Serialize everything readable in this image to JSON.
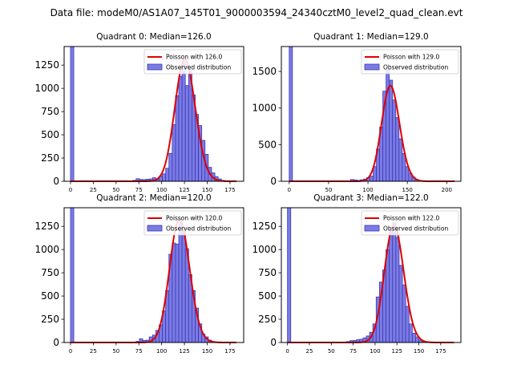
{
  "figure": {
    "suptitle": "Data file: modeM0/AS1A07_145T01_9000003594_24340cztM0_level2_quad_clean.evt"
  },
  "colors": {
    "bar_fill": "#7b7be6",
    "bar_edge": "#3a3ab0",
    "poisson_line": "#e00000",
    "axis": "#000000"
  },
  "chart_data": [
    {
      "type": "bar",
      "title": "Quadrant 0: Median=126.0",
      "median": 126.0,
      "xlim": [
        -7,
        190
      ],
      "ylim": [
        0,
        1450
      ],
      "xticks": [
        0,
        25,
        50,
        75,
        100,
        125,
        150,
        175
      ],
      "yticks": [
        0,
        250,
        500,
        750,
        1000,
        1250
      ],
      "bin_width": 3.6,
      "legend": [
        "Poisson with 126.0",
        "Observed distribution"
      ],
      "legend_position": "top-right",
      "bins": [
        [
          0,
          1450
        ],
        [
          68.4,
          10
        ],
        [
          72,
          28
        ],
        [
          75.6,
          20
        ],
        [
          79.2,
          18
        ],
        [
          82.8,
          22
        ],
        [
          86.4,
          25
        ],
        [
          90,
          38
        ],
        [
          93.6,
          28
        ],
        [
          97.2,
          55
        ],
        [
          100.8,
          80
        ],
        [
          104.4,
          140
        ],
        [
          108,
          300
        ],
        [
          111.6,
          610
        ],
        [
          115.2,
          920
        ],
        [
          118.8,
          1130
        ],
        [
          122.4,
          1280
        ],
        [
          126,
          1030
        ],
        [
          129.6,
          1200
        ],
        [
          133.2,
          930
        ],
        [
          136.8,
          720
        ],
        [
          140.4,
          600
        ],
        [
          144,
          440
        ],
        [
          147.6,
          290
        ],
        [
          151.2,
          150
        ],
        [
          154.8,
          90
        ],
        [
          158.4,
          50
        ],
        [
          162,
          25
        ],
        [
          165.6,
          10
        ]
      ]
    },
    {
      "type": "bar",
      "title": "Quadrant 1: Median=129.0",
      "median": 129.0,
      "xlim": [
        -10,
        218
      ],
      "ylim": [
        0,
        1840
      ],
      "xticks": [
        0,
        50,
        100,
        150,
        200
      ],
      "yticks": [
        0,
        500,
        1000,
        1500
      ],
      "bin_width": 4.1,
      "legend": [
        "Poisson with 129.0",
        "Observed distribution"
      ],
      "legend_position": "top-right",
      "bins": [
        [
          0,
          1840
        ],
        [
          77.9,
          25
        ],
        [
          82,
          18
        ],
        [
          86.1,
          12
        ],
        [
          90.2,
          20
        ],
        [
          94.3,
          30
        ],
        [
          98.4,
          50
        ],
        [
          102.5,
          70
        ],
        [
          106.6,
          200
        ],
        [
          110.7,
          440
        ],
        [
          114.8,
          740
        ],
        [
          118.9,
          1230
        ],
        [
          123,
          1520
        ],
        [
          127.1,
          1380
        ],
        [
          131.2,
          1110
        ],
        [
          135.3,
          870
        ],
        [
          139.4,
          580
        ],
        [
          143.5,
          380
        ],
        [
          147.6,
          200
        ],
        [
          151.7,
          110
        ],
        [
          155.8,
          55
        ],
        [
          159.9,
          25
        ]
      ]
    },
    {
      "type": "bar",
      "title": "Quadrant 2: Median=120.0",
      "median": 120.0,
      "xlim": [
        -7,
        190
      ],
      "ylim": [
        0,
        1450
      ],
      "xticks": [
        0,
        25,
        50,
        75,
        100,
        125,
        150,
        175
      ],
      "yticks": [
        0,
        250,
        500,
        750,
        1000,
        1250
      ],
      "bin_width": 3.6,
      "legend": [
        "Poisson with 120.0",
        "Observed distribution"
      ],
      "legend_position": "top-right",
      "bins": [
        [
          0,
          1450
        ],
        [
          72,
          12
        ],
        [
          75.6,
          40
        ],
        [
          79.2,
          22
        ],
        [
          82.8,
          25
        ],
        [
          86.4,
          60
        ],
        [
          90,
          80
        ],
        [
          93.6,
          130
        ],
        [
          97.2,
          190
        ],
        [
          100.8,
          340
        ],
        [
          104.4,
          560
        ],
        [
          108,
          950
        ],
        [
          111.6,
          1070
        ],
        [
          115.2,
          1060
        ],
        [
          118.8,
          1300
        ],
        [
          122.4,
          1230
        ],
        [
          126,
          1010
        ],
        [
          129.6,
          730
        ],
        [
          133.2,
          560
        ],
        [
          136.8,
          370
        ],
        [
          140.4,
          200
        ],
        [
          144,
          90
        ],
        [
          147.6,
          60
        ],
        [
          151.2,
          25
        ],
        [
          154.8,
          10
        ]
      ]
    },
    {
      "type": "bar",
      "title": "Quadrant 3: Median=122.0",
      "median": 122.0,
      "xlim": [
        -7,
        198
      ],
      "ylim": [
        0,
        1450
      ],
      "xticks": [
        0,
        25,
        50,
        75,
        100,
        125,
        150,
        175
      ],
      "yticks": [
        0,
        250,
        500,
        750,
        1000,
        1250
      ],
      "bin_width": 3.75,
      "legend": [
        "Poisson with 122.0",
        "Observed distribution"
      ],
      "legend_position": "top-right",
      "bins": [
        [
          0,
          1450
        ],
        [
          67.5,
          10
        ],
        [
          71.25,
          20
        ],
        [
          75,
          22
        ],
        [
          78.75,
          30
        ],
        [
          82.5,
          35
        ],
        [
          86.25,
          50
        ],
        [
          90,
          70
        ],
        [
          93.75,
          110
        ],
        [
          97.5,
          200
        ],
        [
          101.25,
          490
        ],
        [
          105,
          650
        ],
        [
          108.75,
          780
        ],
        [
          112.5,
          1000
        ],
        [
          116.25,
          1190
        ],
        [
          120,
          1290
        ],
        [
          123.75,
          1130
        ],
        [
          127.5,
          830
        ],
        [
          131.25,
          620
        ],
        [
          135,
          390
        ],
        [
          138.75,
          200
        ],
        [
          142.5,
          100
        ],
        [
          146.25,
          60
        ],
        [
          150,
          25
        ],
        [
          153.75,
          10
        ]
      ]
    }
  ]
}
